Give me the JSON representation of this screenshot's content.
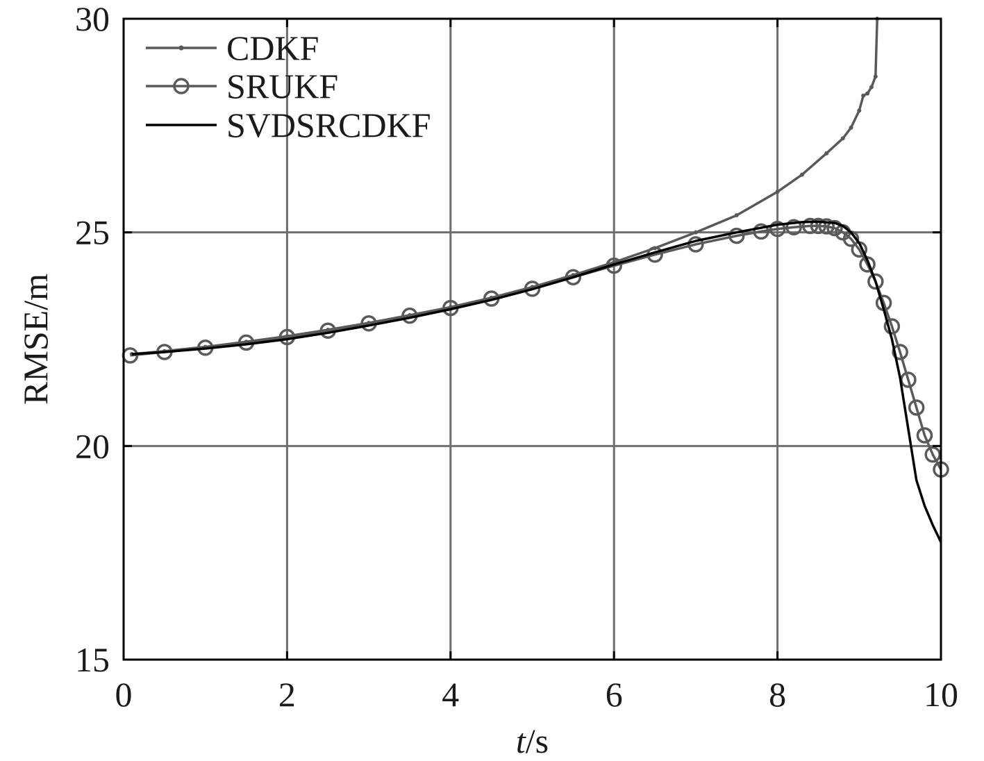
{
  "chart_data": {
    "type": "line",
    "title": "",
    "xlabel_italic": "t",
    "xlabel_rest": "/s",
    "ylabel": "RMSE/m",
    "xlim": [
      0,
      10
    ],
    "ylim": [
      15,
      30
    ],
    "xticks": [
      0,
      2,
      4,
      6,
      8,
      10
    ],
    "yticks": [
      15,
      20,
      25,
      30
    ],
    "grid": true,
    "legend_position": "top-left",
    "colors": {
      "cdkf": "#595959",
      "srukf": "#5a5a5a",
      "svdsrcdkf": "#000000",
      "grid": "#6e6e6e",
      "axis": "#000000"
    },
    "series": [
      {
        "name": "CDKF",
        "marker": "dot",
        "x": [
          0.1,
          0.5,
          1.0,
          1.5,
          2.0,
          2.5,
          3.0,
          3.5,
          4.0,
          4.5,
          5.0,
          5.5,
          6.0,
          6.5,
          7.0,
          7.5,
          8.0,
          8.3,
          8.6,
          8.8,
          8.9,
          9.0,
          9.05,
          9.1,
          9.15,
          9.2,
          9.22
        ],
        "y": [
          22.15,
          22.22,
          22.32,
          22.44,
          22.57,
          22.72,
          22.88,
          23.06,
          23.25,
          23.47,
          23.72,
          24.0,
          24.3,
          24.63,
          25.0,
          25.4,
          25.95,
          26.35,
          26.85,
          27.2,
          27.45,
          27.85,
          28.2,
          28.25,
          28.4,
          28.65,
          30.0
        ]
      },
      {
        "name": "SRUKF",
        "marker": "circle",
        "x": [
          0.08,
          0.5,
          1.0,
          1.5,
          2.0,
          2.5,
          3.0,
          3.5,
          4.0,
          4.5,
          5.0,
          5.5,
          6.0,
          6.5,
          7.0,
          7.5,
          7.8,
          8.0,
          8.2,
          8.4,
          8.5,
          8.6,
          8.7,
          8.8,
          8.9,
          9.0,
          9.1,
          9.2,
          9.3,
          9.4,
          9.5,
          9.6,
          9.7,
          9.8,
          9.9,
          10.0
        ],
        "y": [
          22.12,
          22.2,
          22.3,
          22.42,
          22.55,
          22.7,
          22.87,
          23.05,
          23.23,
          23.45,
          23.68,
          23.95,
          24.22,
          24.48,
          24.72,
          24.92,
          25.02,
          25.08,
          25.12,
          25.15,
          25.15,
          25.14,
          25.1,
          25.0,
          24.85,
          24.6,
          24.25,
          23.85,
          23.35,
          22.8,
          22.2,
          21.55,
          20.9,
          20.25,
          19.8,
          19.45
        ]
      },
      {
        "name": "SVDSRCDKF",
        "marker": "none",
        "x": [
          0.1,
          0.5,
          1.0,
          1.5,
          2.0,
          2.5,
          3.0,
          3.5,
          4.0,
          4.5,
          5.0,
          5.5,
          6.0,
          6.5,
          7.0,
          7.5,
          8.0,
          8.3,
          8.5,
          8.7,
          8.8,
          8.9,
          9.0,
          9.1,
          9.2,
          9.3,
          9.4,
          9.5,
          9.6,
          9.7,
          9.8,
          9.9,
          10.0
        ],
        "y": [
          22.15,
          22.2,
          22.28,
          22.38,
          22.5,
          22.65,
          22.82,
          23.0,
          23.2,
          23.42,
          23.67,
          23.95,
          24.25,
          24.53,
          24.8,
          25.0,
          25.18,
          25.24,
          25.25,
          25.22,
          25.15,
          25.0,
          24.75,
          24.35,
          23.85,
          23.2,
          22.5,
          21.6,
          20.4,
          19.2,
          18.6,
          18.15,
          17.75
        ]
      }
    ]
  }
}
